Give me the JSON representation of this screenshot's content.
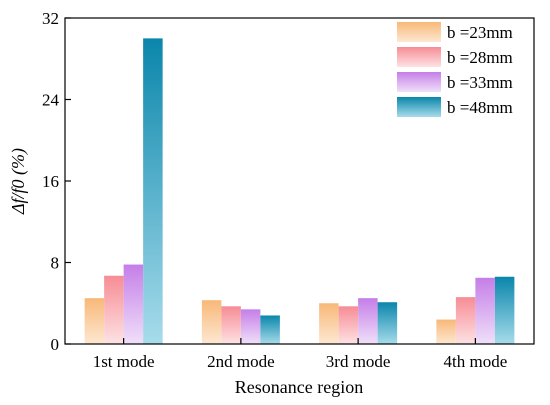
{
  "chart_data": {
    "type": "bar",
    "title": "",
    "xlabel": "Resonance region",
    "ylabel": "Δf/f0 (%)",
    "ylim": [
      0,
      32
    ],
    "yticks": [
      "0",
      "8",
      "16",
      "24",
      "32"
    ],
    "categories": [
      "1st mode",
      "2nd mode",
      "3rd mode",
      "4th mode"
    ],
    "legend_position": "top-right",
    "grid": false,
    "series": [
      {
        "name": "b =23mm",
        "values": [
          4.5,
          4.3,
          4.0,
          2.4
        ],
        "color_top": "#f8b878",
        "color_bottom": "#fde8d2"
      },
      {
        "name": "b =28mm",
        "values": [
          6.7,
          3.7,
          3.7,
          4.6
        ],
        "color_top": "#f78c95",
        "color_bottom": "#fde2e4"
      },
      {
        "name": "b =33mm",
        "values": [
          7.8,
          3.4,
          4.5,
          6.5
        ],
        "color_top": "#c57ee8",
        "color_bottom": "#f0e0f9"
      },
      {
        "name": "b =48mm",
        "values": [
          30.0,
          2.8,
          4.1,
          6.6
        ],
        "color_top": "#0a86ab",
        "color_bottom": "#a7dceb"
      }
    ]
  }
}
